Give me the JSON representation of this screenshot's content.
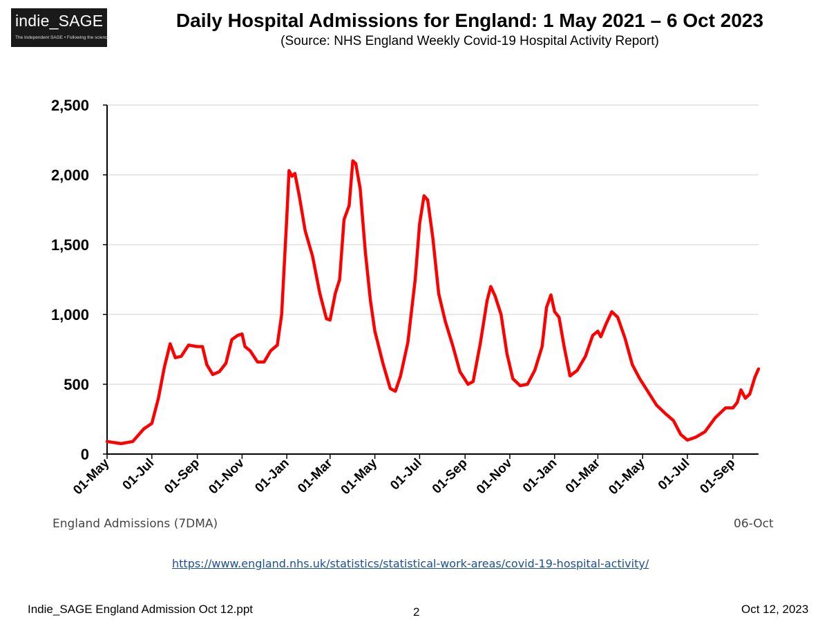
{
  "logo": {
    "name": "indie_SAGE",
    "tagline": "The Independent SAGE • Following the science"
  },
  "header": {
    "title": "Daily Hospital Admissions for England: 1 May 2021 – 6 Oct 2023",
    "subtitle": "(Source: NHS England Weekly Covid-19 Hospital Activity Report)"
  },
  "chart_data": {
    "type": "line",
    "title": "Daily Hospital Admissions for England: 1 May 2021 – 6 Oct 2023",
    "xlabel": "",
    "ylabel": "",
    "ylim": [
      0,
      2500
    ],
    "xlim": [
      "2021-05-01",
      "2023-10-06"
    ],
    "grid": "horizontal",
    "yticks": [
      0,
      500,
      1000,
      1500,
      2000,
      2500
    ],
    "ytick_labels": [
      "0",
      "500",
      "1,000",
      "1,500",
      "2,000",
      "2,500"
    ],
    "xtick_labels": [
      "01-May",
      "01-Jul",
      "01-Sep",
      "01-Nov",
      "01-Jan",
      "01-Mar",
      "01-May",
      "01-Jul",
      "01-Sep",
      "01-Nov",
      "01-Jan",
      "01-Mar",
      "01-May",
      "01-Jul",
      "01-Sep"
    ],
    "xtick_dates": [
      "2021-05-01",
      "2021-07-01",
      "2021-09-01",
      "2021-11-01",
      "2022-01-01",
      "2022-03-01",
      "2022-05-01",
      "2022-07-01",
      "2022-09-01",
      "2022-11-01",
      "2023-01-01",
      "2023-03-01",
      "2023-05-01",
      "2023-07-01",
      "2023-09-01"
    ],
    "series_label": "England Admissions (7DMA)",
    "end_label": "06-Oct",
    "series": [
      {
        "name": "England Admissions (7DMA)",
        "color": "#ff0000",
        "points": [
          [
            "2021-05-01",
            90
          ],
          [
            "2021-05-20",
            75
          ],
          [
            "2021-06-05",
            90
          ],
          [
            "2021-06-20",
            180
          ],
          [
            "2021-07-01",
            220
          ],
          [
            "2021-07-10",
            400
          ],
          [
            "2021-07-18",
            620
          ],
          [
            "2021-07-26",
            790
          ],
          [
            "2021-08-02",
            690
          ],
          [
            "2021-08-10",
            700
          ],
          [
            "2021-08-20",
            780
          ],
          [
            "2021-09-01",
            770
          ],
          [
            "2021-09-08",
            770
          ],
          [
            "2021-09-14",
            640
          ],
          [
            "2021-09-22",
            570
          ],
          [
            "2021-10-01",
            590
          ],
          [
            "2021-10-10",
            650
          ],
          [
            "2021-10-18",
            820
          ],
          [
            "2021-10-26",
            850
          ],
          [
            "2021-11-01",
            860
          ],
          [
            "2021-11-05",
            770
          ],
          [
            "2021-11-12",
            740
          ],
          [
            "2021-11-22",
            660
          ],
          [
            "2021-12-01",
            660
          ],
          [
            "2021-12-10",
            740
          ],
          [
            "2021-12-19",
            780
          ],
          [
            "2021-12-25",
            1000
          ],
          [
            "2022-01-01",
            1700
          ],
          [
            "2022-01-04",
            2030
          ],
          [
            "2022-01-08",
            1990
          ],
          [
            "2022-01-12",
            2010
          ],
          [
            "2022-01-18",
            1850
          ],
          [
            "2022-01-26",
            1600
          ],
          [
            "2022-02-05",
            1420
          ],
          [
            "2022-02-15",
            1150
          ],
          [
            "2022-02-24",
            970
          ],
          [
            "2022-03-01",
            960
          ],
          [
            "2022-03-08",
            1150
          ],
          [
            "2022-03-14",
            1250
          ],
          [
            "2022-03-20",
            1680
          ],
          [
            "2022-03-27",
            1780
          ],
          [
            "2022-04-01",
            2100
          ],
          [
            "2022-04-05",
            2080
          ],
          [
            "2022-04-11",
            1900
          ],
          [
            "2022-04-18",
            1450
          ],
          [
            "2022-04-25",
            1100
          ],
          [
            "2022-05-01",
            880
          ],
          [
            "2022-05-12",
            650
          ],
          [
            "2022-05-22",
            470
          ],
          [
            "2022-05-29",
            450
          ],
          [
            "2022-06-05",
            560
          ],
          [
            "2022-06-15",
            800
          ],
          [
            "2022-06-25",
            1250
          ],
          [
            "2022-07-01",
            1650
          ],
          [
            "2022-07-07",
            1850
          ],
          [
            "2022-07-12",
            1820
          ],
          [
            "2022-07-19",
            1550
          ],
          [
            "2022-07-27",
            1150
          ],
          [
            "2022-08-05",
            950
          ],
          [
            "2022-08-15",
            780
          ],
          [
            "2022-08-25",
            590
          ],
          [
            "2022-09-05",
            500
          ],
          [
            "2022-09-12",
            520
          ],
          [
            "2022-09-22",
            800
          ],
          [
            "2022-10-01",
            1100
          ],
          [
            "2022-10-06",
            1200
          ],
          [
            "2022-10-12",
            1130
          ],
          [
            "2022-10-20",
            1000
          ],
          [
            "2022-10-28",
            720
          ],
          [
            "2022-11-05",
            540
          ],
          [
            "2022-11-15",
            490
          ],
          [
            "2022-11-25",
            500
          ],
          [
            "2022-12-05",
            600
          ],
          [
            "2022-12-15",
            770
          ],
          [
            "2022-12-21",
            1050
          ],
          [
            "2022-12-27",
            1140
          ],
          [
            "2023-01-01",
            1020
          ],
          [
            "2023-01-07",
            980
          ],
          [
            "2023-01-14",
            770
          ],
          [
            "2023-01-22",
            560
          ],
          [
            "2023-02-01",
            600
          ],
          [
            "2023-02-12",
            700
          ],
          [
            "2023-02-22",
            850
          ],
          [
            "2023-03-01",
            880
          ],
          [
            "2023-03-05",
            840
          ],
          [
            "2023-03-12",
            930
          ],
          [
            "2023-03-20",
            1020
          ],
          [
            "2023-03-28",
            980
          ],
          [
            "2023-04-07",
            830
          ],
          [
            "2023-04-17",
            640
          ],
          [
            "2023-04-27",
            540
          ],
          [
            "2023-05-08",
            450
          ],
          [
            "2023-05-20",
            350
          ],
          [
            "2023-06-01",
            290
          ],
          [
            "2023-06-12",
            240
          ],
          [
            "2023-06-22",
            140
          ],
          [
            "2023-07-01",
            100
          ],
          [
            "2023-07-12",
            120
          ],
          [
            "2023-07-25",
            160
          ],
          [
            "2023-08-08",
            260
          ],
          [
            "2023-08-22",
            330
          ],
          [
            "2023-09-01",
            330
          ],
          [
            "2023-09-07",
            370
          ],
          [
            "2023-09-12",
            460
          ],
          [
            "2023-09-18",
            400
          ],
          [
            "2023-09-24",
            430
          ],
          [
            "2023-10-01",
            550
          ],
          [
            "2023-10-06",
            610
          ]
        ]
      }
    ]
  },
  "source": {
    "url_text": "https://www.england.nhs.uk/statistics/statistical-work-areas/covid-19-hospital-activity/"
  },
  "footer": {
    "file_name": "Indie_SAGE England Admission Oct 12.ppt",
    "page_number": "2",
    "date": "Oct 12, 2023"
  }
}
